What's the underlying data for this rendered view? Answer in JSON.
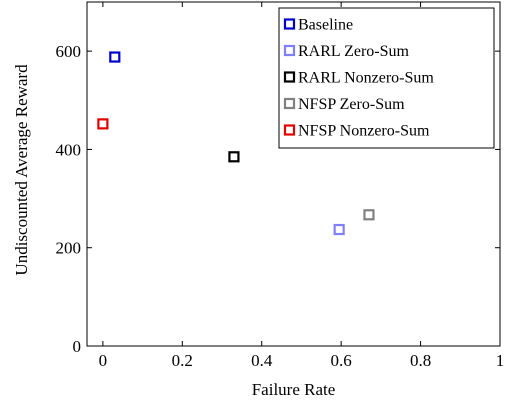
{
  "chart_data": {
    "type": "scatter",
    "title": "",
    "xlabel": "Failure Rate",
    "ylabel": "Undiscounted Average Reward",
    "xlim": [
      -0.04,
      1.0
    ],
    "ylim": [
      0,
      700
    ],
    "xticks": [
      0,
      0.2,
      0.4,
      0.6,
      0.8,
      1
    ],
    "xtick_labels": [
      "0",
      "0.2",
      "0.4",
      "0.6",
      "0.8",
      "1"
    ],
    "yticks": [
      0,
      200,
      400,
      600
    ],
    "ytick_labels": [
      "0",
      "200",
      "400",
      "600"
    ],
    "grid": false,
    "legend_position": "top-right",
    "marker": "open-square",
    "series": [
      {
        "name": "Baseline",
        "color": "#0000cc",
        "points": [
          {
            "x": 0.03,
            "y": 588
          }
        ]
      },
      {
        "name": "RARL Zero-Sum",
        "color": "#8080ff",
        "points": [
          {
            "x": 0.595,
            "y": 237
          }
        ]
      },
      {
        "name": "RARL Nonzero-Sum",
        "color": "#000000",
        "points": [
          {
            "x": 0.33,
            "y": 385
          }
        ]
      },
      {
        "name": "NFSP Zero-Sum",
        "color": "#808080",
        "points": [
          {
            "x": 0.67,
            "y": 267
          }
        ]
      },
      {
        "name": "NFSP Nonzero-Sum",
        "color": "#e00000",
        "points": [
          {
            "x": 0.0,
            "y": 452
          }
        ]
      }
    ]
  }
}
